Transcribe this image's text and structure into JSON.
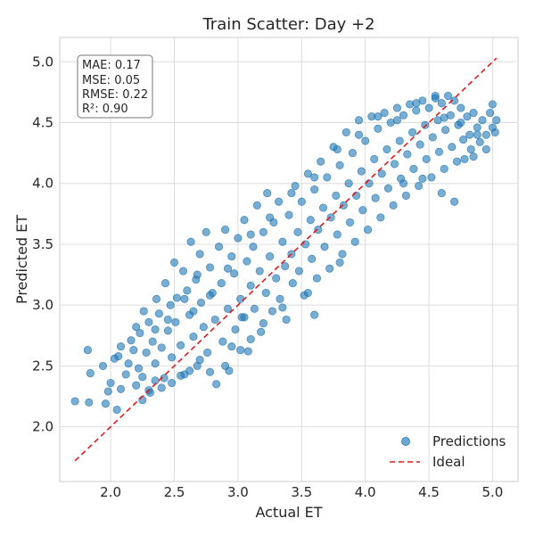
{
  "chart_data": {
    "type": "scatter",
    "title": "Train Scatter: Day +2",
    "xlabel": "Actual ET",
    "ylabel": "Predicted ET",
    "xlim": [
      1.6,
      5.2
    ],
    "ylim": [
      1.55,
      5.2
    ],
    "xticks": [
      "2.0",
      "2.5",
      "3.0",
      "3.5",
      "4.0",
      "4.5",
      "5.0"
    ],
    "yticks": [
      "2.0",
      "2.5",
      "3.0",
      "3.5",
      "4.0",
      "4.5",
      "5.0"
    ],
    "grid": true,
    "legend_position": "lower-right",
    "series": [
      {
        "name": "Predictions",
        "kind": "scatter",
        "color": "#1f77b4",
        "points": [
          [
            1.72,
            2.21
          ],
          [
            1.83,
            2.2
          ],
          [
            1.82,
            2.63
          ],
          [
            1.84,
            2.44
          ],
          [
            1.94,
            2.5
          ],
          [
            1.98,
            2.29
          ],
          [
            1.96,
            2.19
          ],
          [
            2.0,
            2.36
          ],
          [
            2.03,
            2.56
          ],
          [
            2.06,
            2.58
          ],
          [
            2.05,
            2.14
          ],
          [
            2.08,
            2.66
          ],
          [
            2.08,
            2.31
          ],
          [
            2.12,
            2.43
          ],
          [
            2.14,
            2.52
          ],
          [
            2.16,
            2.71
          ],
          [
            2.18,
            2.63
          ],
          [
            2.2,
            2.82
          ],
          [
            2.22,
            2.48
          ],
          [
            2.23,
            2.77
          ],
          [
            2.25,
            2.41
          ],
          [
            2.26,
            2.95
          ],
          [
            2.28,
            2.61
          ],
          [
            2.3,
            2.86
          ],
          [
            2.31,
            2.28
          ],
          [
            2.33,
            2.7
          ],
          [
            2.35,
            2.52
          ],
          [
            2.36,
            3.05
          ],
          [
            2.38,
            2.93
          ],
          [
            2.4,
            2.65
          ],
          [
            2.42,
            2.4
          ],
          [
            2.43,
            3.18
          ],
          [
            2.45,
            2.79
          ],
          [
            2.47,
            3.0
          ],
          [
            2.48,
            2.57
          ],
          [
            2.5,
            3.35
          ],
          [
            2.51,
            2.86
          ],
          [
            2.52,
            3.06
          ],
          [
            2.55,
            2.67
          ],
          [
            2.57,
            3.28
          ],
          [
            2.58,
            2.43
          ],
          [
            2.6,
            3.12
          ],
          [
            2.62,
            2.92
          ],
          [
            2.63,
            3.52
          ],
          [
            2.65,
            2.74
          ],
          [
            2.67,
            3.21
          ],
          [
            2.68,
            2.5
          ],
          [
            2.7,
            3.42
          ],
          [
            2.71,
            3.02
          ],
          [
            2.73,
            2.82
          ],
          [
            2.75,
            3.6
          ],
          [
            2.76,
            2.61
          ],
          [
            2.78,
            3.31
          ],
          [
            2.8,
            3.1
          ],
          [
            2.82,
            2.88
          ],
          [
            2.83,
            2.35
          ],
          [
            2.85,
            3.48
          ],
          [
            2.87,
            3.18
          ],
          [
            2.88,
            2.7
          ],
          [
            2.9,
            3.62
          ],
          [
            2.92,
            2.97
          ],
          [
            2.93,
            2.46
          ],
          [
            2.95,
            3.4
          ],
          [
            2.97,
            3.26
          ],
          [
            2.98,
            2.8
          ],
          [
            3.0,
            3.55
          ],
          [
            3.02,
            3.05
          ],
          [
            3.03,
            2.9
          ],
          [
            3.05,
            3.7
          ],
          [
            3.07,
            3.36
          ],
          [
            3.08,
            2.62
          ],
          [
            3.1,
            3.16
          ],
          [
            3.12,
            3.48
          ],
          [
            3.13,
            2.97
          ],
          [
            3.15,
            3.82
          ],
          [
            3.17,
            3.28
          ],
          [
            3.18,
            2.78
          ],
          [
            3.2,
            3.6
          ],
          [
            3.22,
            3.1
          ],
          [
            3.23,
            3.92
          ],
          [
            3.25,
            3.4
          ],
          [
            3.27,
            2.95
          ],
          [
            3.28,
            3.68
          ],
          [
            3.3,
            3.22
          ],
          [
            3.32,
            3.85
          ],
          [
            3.33,
            3.05
          ],
          [
            3.35,
            3.52
          ],
          [
            3.37,
            3.32
          ],
          [
            3.38,
            2.88
          ],
          [
            3.4,
            3.74
          ],
          [
            3.42,
            3.42
          ],
          [
            3.43,
            3.18
          ],
          [
            3.45,
            3.98
          ],
          [
            3.47,
            3.6
          ],
          [
            3.48,
            3.28
          ],
          [
            3.5,
            3.85
          ],
          [
            3.52,
            3.08
          ],
          [
            3.53,
            3.5
          ],
          [
            3.55,
            4.08
          ],
          [
            3.57,
            3.7
          ],
          [
            3.58,
            3.38
          ],
          [
            3.6,
            3.95
          ],
          [
            3.62,
            3.22
          ],
          [
            3.63,
            3.62
          ],
          [
            3.65,
            4.18
          ],
          [
            3.67,
            3.8
          ],
          [
            3.68,
            3.48
          ],
          [
            3.7,
            4.05
          ],
          [
            3.72,
            3.3
          ],
          [
            3.73,
            3.72
          ],
          [
            3.75,
            4.3
          ],
          [
            3.77,
            3.9
          ],
          [
            3.78,
            3.58
          ],
          [
            3.8,
            4.15
          ],
          [
            3.82,
            3.42
          ],
          [
            3.83,
            3.82
          ],
          [
            3.85,
            4.42
          ],
          [
            3.87,
            4.0
          ],
          [
            3.88,
            3.68
          ],
          [
            3.9,
            4.25
          ],
          [
            3.92,
            3.52
          ],
          [
            3.93,
            3.9
          ],
          [
            3.95,
            4.52
          ],
          [
            3.97,
            4.1
          ],
          [
            3.98,
            3.78
          ],
          [
            4.0,
            4.35
          ],
          [
            4.02,
            3.62
          ],
          [
            4.03,
            4.0
          ],
          [
            4.05,
            4.55
          ],
          [
            4.07,
            4.2
          ],
          [
            4.08,
            3.88
          ],
          [
            4.1,
            4.45
          ],
          [
            4.12,
            3.72
          ],
          [
            4.13,
            4.08
          ],
          [
            4.15,
            4.58
          ],
          [
            4.17,
            4.28
          ],
          [
            4.18,
            3.96
          ],
          [
            4.2,
            4.5
          ],
          [
            4.22,
            3.82
          ],
          [
            4.23,
            4.16
          ],
          [
            4.25,
            4.62
          ],
          [
            4.27,
            4.35
          ],
          [
            4.28,
            4.04
          ],
          [
            4.3,
            4.56
          ],
          [
            4.32,
            3.9
          ],
          [
            4.33,
            4.24
          ],
          [
            4.35,
            4.65
          ],
          [
            4.37,
            4.42
          ],
          [
            4.38,
            4.12
          ],
          [
            4.4,
            4.6
          ],
          [
            4.42,
            3.98
          ],
          [
            4.43,
            4.32
          ],
          [
            4.45,
            4.68
          ],
          [
            4.47,
            4.48
          ],
          [
            4.48,
            4.2
          ],
          [
            4.5,
            4.62
          ],
          [
            4.52,
            4.05
          ],
          [
            4.53,
            4.38
          ],
          [
            4.55,
            4.7
          ],
          [
            4.57,
            4.52
          ],
          [
            4.58,
            4.26
          ],
          [
            4.6,
            4.66
          ],
          [
            4.62,
            4.12
          ],
          [
            4.63,
            4.44
          ],
          [
            4.65,
            4.72
          ],
          [
            4.67,
            4.56
          ],
          [
            4.68,
            4.3
          ],
          [
            4.7,
            4.68
          ],
          [
            4.72,
            4.18
          ],
          [
            4.73,
            4.48
          ],
          [
            4.75,
            4.62
          ],
          [
            4.77,
            4.36
          ],
          [
            4.78,
            4.2
          ],
          [
            4.8,
            4.55
          ],
          [
            4.82,
            4.4
          ],
          [
            4.83,
            4.28
          ],
          [
            4.85,
            4.58
          ],
          [
            4.88,
            4.46
          ],
          [
            4.9,
            4.34
          ],
          [
            4.92,
            4.52
          ],
          [
            4.95,
            4.4
          ],
          [
            4.98,
            4.58
          ],
          [
            5.0,
            4.46
          ],
          [
            5.03,
            4.52
          ],
          [
            4.55,
            4.72
          ],
          [
            4.45,
            4.04
          ],
          [
            4.7,
            3.85
          ],
          [
            4.3,
            4.0
          ],
          [
            4.6,
            3.92
          ],
          [
            4.85,
            4.22
          ],
          [
            4.95,
            4.28
          ],
          [
            5.0,
            4.65
          ],
          [
            3.05,
            2.9
          ],
          [
            3.2,
            2.85
          ],
          [
            3.35,
            2.98
          ],
          [
            3.55,
            3.1
          ],
          [
            3.8,
            3.35
          ],
          [
            3.6,
            2.92
          ],
          [
            3.1,
            2.72
          ],
          [
            2.95,
            2.66
          ],
          [
            2.7,
            2.55
          ],
          [
            2.55,
            2.42
          ],
          [
            2.4,
            2.32
          ],
          [
            2.3,
            2.3
          ],
          [
            2.25,
            2.22
          ],
          [
            2.2,
            2.34
          ],
          [
            2.35,
            2.38
          ],
          [
            2.48,
            2.36
          ],
          [
            2.62,
            2.46
          ],
          [
            2.78,
            2.45
          ],
          [
            2.9,
            2.5
          ],
          [
            3.02,
            2.63
          ],
          [
            2.68,
            3.25
          ],
          [
            2.58,
            3.05
          ],
          [
            2.45,
            2.88
          ],
          [
            2.35,
            2.8
          ],
          [
            2.65,
            2.95
          ],
          [
            2.78,
            3.08
          ],
          [
            2.92,
            3.3
          ],
          [
            3.1,
            3.58
          ],
          [
            3.25,
            3.72
          ],
          [
            3.42,
            3.92
          ],
          [
            3.6,
            4.05
          ],
          [
            3.78,
            4.28
          ],
          [
            3.95,
            4.4
          ],
          [
            4.1,
            4.55
          ],
          [
            4.25,
            4.52
          ],
          [
            4.4,
            4.66
          ],
          [
            4.62,
            4.54
          ],
          [
            4.75,
            4.5
          ],
          [
            4.88,
            4.4
          ],
          [
            5.02,
            4.42
          ]
        ]
      },
      {
        "name": "Ideal",
        "kind": "line",
        "style": "dashed",
        "color": "#e31a1c",
        "points": [
          [
            1.72,
            1.72
          ],
          [
            5.03,
            5.03
          ]
        ]
      }
    ],
    "annotation": {
      "lines": [
        "MAE: 0.17",
        "MSE: 0.05",
        "RMSE: 0.22",
        "R²: 0.90"
      ]
    }
  }
}
